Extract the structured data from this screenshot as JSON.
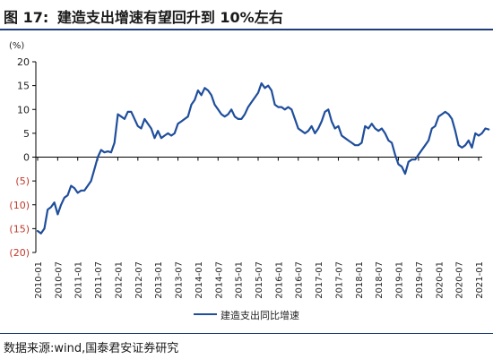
{
  "figure": {
    "number": "图 17:",
    "title": "建造支出增速有望回升到 10%左右",
    "source": "数据来源:wind,国泰君安证券研究"
  },
  "chart_data": {
    "type": "line",
    "unit_label": "(%)",
    "ylim": [
      -20,
      20
    ],
    "y_ticks": [
      20,
      15,
      10,
      5,
      0,
      -5,
      -10,
      -15,
      -20
    ],
    "y_tick_labels": [
      "20",
      "15",
      "10",
      "5",
      "0",
      "(5)",
      "(10)",
      "(15)",
      "(20)"
    ],
    "negative_tick_color": "#c0392b",
    "x_tick_labels": [
      "2010-01",
      "2010-07",
      "2011-01",
      "2011-07",
      "2012-01",
      "2012-07",
      "2013-01",
      "2013-07",
      "2014-01",
      "2014-07",
      "2015-01",
      "2015-07",
      "2016-01",
      "2016-07",
      "2017-01",
      "2017-07",
      "2018-01",
      "2018-07",
      "2019-01",
      "2019-07",
      "2020-01",
      "2020-07",
      "2021-01"
    ],
    "legend_position": "bottom",
    "line_color": "#1f4e9c",
    "series": [
      {
        "name": "建造支出同比增速",
        "start": "2010-01",
        "frequency": "monthly",
        "values": [
          -15.5,
          -16.0,
          -15.0,
          -11.0,
          -10.5,
          -9.5,
          -12.0,
          -10.0,
          -8.5,
          -8.0,
          -6.0,
          -6.5,
          -7.5,
          -7.0,
          -7.0,
          -6.0,
          -5.0,
          -2.5,
          0.0,
          1.5,
          1.0,
          1.2,
          1.0,
          3.0,
          9.0,
          8.5,
          8.0,
          9.5,
          9.5,
          8.0,
          6.5,
          6.0,
          8.0,
          7.0,
          6.0,
          4.0,
          5.5,
          4.0,
          4.5,
          5.0,
          4.5,
          5.0,
          7.0,
          7.5,
          8.0,
          8.5,
          11.0,
          12.0,
          14.0,
          13.0,
          14.5,
          14.0,
          13.0,
          11.0,
          10.0,
          9.0,
          8.5,
          9.0,
          10.0,
          8.5,
          8.0,
          8.0,
          9.0,
          10.5,
          11.5,
          12.5,
          13.5,
          15.5,
          14.5,
          15.0,
          14.0,
          11.0,
          10.5,
          10.5,
          10.0,
          10.5,
          10.0,
          8.0,
          6.0,
          5.5,
          5.0,
          5.5,
          6.5,
          5.0,
          6.0,
          7.5,
          9.5,
          10.0,
          7.5,
          6.0,
          6.5,
          4.5,
          4.0,
          3.5,
          3.0,
          2.5,
          2.5,
          3.0,
          6.5,
          6.0,
          7.0,
          6.0,
          5.5,
          6.0,
          5.0,
          3.5,
          3.0,
          0.5,
          -1.5,
          -2.0,
          -3.5,
          -1.0,
          -0.5,
          -0.5,
          0.5,
          1.5,
          2.5,
          3.5,
          6.0,
          6.5,
          8.5,
          9.0,
          9.5,
          9.0,
          8.0,
          5.5,
          2.5,
          2.0,
          2.5,
          3.5,
          2.0,
          5.0,
          4.5,
          5.0,
          6.0,
          5.8
        ]
      }
    ]
  }
}
